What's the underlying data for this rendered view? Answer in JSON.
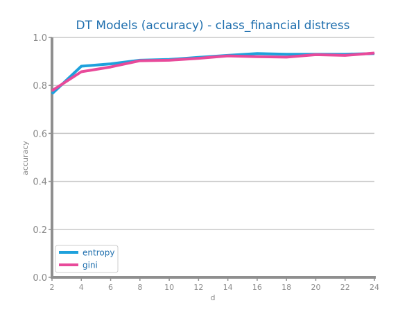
{
  "chart_data": {
    "type": "line",
    "title": "DT Models (accuracy) - class_financial distress",
    "xlabel": "d",
    "ylabel": "accuracy",
    "x": [
      2,
      4,
      6,
      8,
      10,
      12,
      14,
      16,
      18,
      20,
      22,
      24
    ],
    "x_ticks": [
      "2",
      "4",
      "6",
      "8",
      "10",
      "12",
      "14",
      "16",
      "18",
      "20",
      "22",
      "24"
    ],
    "y_ticks": [
      "0.0",
      "0.2",
      "0.4",
      "0.6",
      "0.8",
      "1.0"
    ],
    "xlim": [
      2,
      24
    ],
    "ylim": [
      0,
      1
    ],
    "grid": "horizontal",
    "legend_position": "lower-left",
    "series": [
      {
        "name": "entropy",
        "color": "#1ea1dc",
        "values": [
          0.765,
          0.88,
          0.89,
          0.905,
          0.908,
          0.917,
          0.925,
          0.933,
          0.93,
          0.93,
          0.93,
          0.933
        ]
      },
      {
        "name": "gini",
        "color": "#e84a9a",
        "values": [
          0.778,
          0.857,
          0.877,
          0.903,
          0.905,
          0.913,
          0.923,
          0.92,
          0.918,
          0.928,
          0.925,
          0.935
        ]
      }
    ],
    "colors": {
      "title": "#1f6fae",
      "axis": "#8f8f8f",
      "grid": "#c8c8c8",
      "tick_label": "#888888"
    }
  }
}
